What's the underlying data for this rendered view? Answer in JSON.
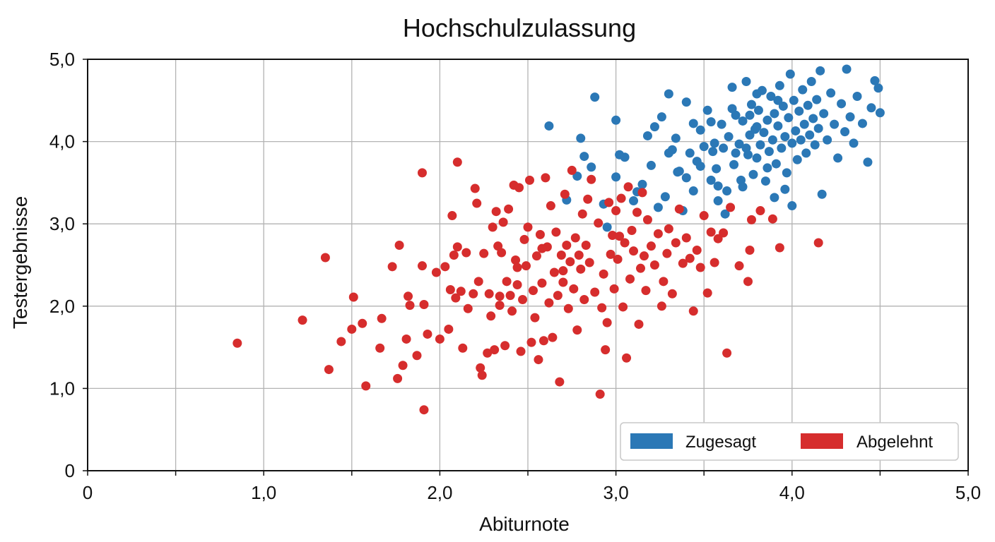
{
  "chart_data": {
    "type": "scatter",
    "title": "Hochschulzulassung",
    "xlabel": "Abiturnote",
    "ylabel": "Testergebnisse",
    "xlim": [
      0,
      5
    ],
    "ylim": [
      0,
      5
    ],
    "x_ticks": [
      0,
      0.5,
      1,
      1.5,
      2,
      2.5,
      3,
      3.5,
      4,
      4.5,
      5
    ],
    "x_tick_labels": [
      "0",
      "",
      "1,0",
      "",
      "2,0",
      "",
      "3,0",
      "",
      "4,0",
      "",
      "5,0"
    ],
    "y_ticks": [
      0,
      1,
      2,
      3,
      4,
      5
    ],
    "y_tick_labels": [
      "0",
      "1,0",
      "2,0",
      "3,0",
      "4,0",
      "5,0"
    ],
    "grid": true,
    "legend_position": "bottom-right",
    "series": [
      {
        "name": "Zugesagt",
        "color": "#2b78b6",
        "points": [
          [
            2.62,
            4.19
          ],
          [
            2.72,
            3.29
          ],
          [
            2.78,
            3.58
          ],
          [
            2.8,
            4.04
          ],
          [
            2.82,
            3.82
          ],
          [
            2.86,
            3.69
          ],
          [
            2.88,
            4.54
          ],
          [
            2.93,
            3.24
          ],
          [
            2.95,
            2.96
          ],
          [
            3.0,
            3.57
          ],
          [
            3.0,
            4.26
          ],
          [
            3.02,
            3.84
          ],
          [
            3.05,
            3.81
          ],
          [
            3.1,
            3.28
          ],
          [
            3.12,
            3.39
          ],
          [
            3.15,
            3.48
          ],
          [
            3.18,
            4.07
          ],
          [
            3.2,
            3.71
          ],
          [
            3.22,
            4.18
          ],
          [
            3.24,
            3.2
          ],
          [
            3.28,
            3.33
          ],
          [
            3.3,
            4.58
          ],
          [
            3.32,
            3.9
          ],
          [
            3.34,
            4.04
          ],
          [
            3.35,
            3.63
          ],
          [
            3.38,
            3.16
          ],
          [
            3.4,
            4.48
          ],
          [
            3.42,
            3.86
          ],
          [
            3.44,
            3.4
          ],
          [
            3.46,
            3.76
          ],
          [
            3.48,
            4.14
          ],
          [
            3.5,
            3.94
          ],
          [
            3.52,
            4.38
          ],
          [
            3.54,
            3.53
          ],
          [
            3.55,
            3.88
          ],
          [
            3.57,
            3.67
          ],
          [
            3.58,
            3.28
          ],
          [
            3.6,
            4.21
          ],
          [
            3.61,
            3.92
          ],
          [
            3.63,
            3.4
          ],
          [
            3.64,
            4.06
          ],
          [
            3.66,
            4.66
          ],
          [
            3.67,
            3.72
          ],
          [
            3.68,
            4.32
          ],
          [
            3.7,
            3.97
          ],
          [
            3.71,
            3.53
          ],
          [
            3.72,
            4.25
          ],
          [
            3.74,
            4.73
          ],
          [
            3.75,
            3.84
          ],
          [
            3.76,
            4.08
          ],
          [
            3.77,
            4.45
          ],
          [
            3.78,
            3.6
          ],
          [
            3.79,
            4.15
          ],
          [
            3.8,
            3.8
          ],
          [
            3.81,
            4.38
          ],
          [
            3.82,
            3.96
          ],
          [
            3.83,
            4.62
          ],
          [
            3.84,
            4.11
          ],
          [
            3.85,
            3.52
          ],
          [
            3.86,
            4.26
          ],
          [
            3.87,
            3.88
          ],
          [
            3.88,
            4.55
          ],
          [
            3.89,
            4.02
          ],
          [
            3.9,
            4.34
          ],
          [
            3.91,
            3.73
          ],
          [
            3.92,
            4.19
          ],
          [
            3.93,
            4.68
          ],
          [
            3.94,
            3.92
          ],
          [
            3.95,
            4.43
          ],
          [
            3.96,
            4.06
          ],
          [
            3.97,
            3.62
          ],
          [
            3.98,
            4.29
          ],
          [
            3.99,
            4.82
          ],
          [
            4.0,
            3.98
          ],
          [
            4.01,
            4.5
          ],
          [
            4.02,
            4.13
          ],
          [
            4.03,
            3.78
          ],
          [
            4.04,
            4.37
          ],
          [
            4.05,
            4.02
          ],
          [
            4.06,
            4.63
          ],
          [
            4.07,
            4.21
          ],
          [
            4.08,
            3.86
          ],
          [
            4.09,
            4.44
          ],
          [
            4.1,
            4.08
          ],
          [
            4.11,
            4.73
          ],
          [
            4.12,
            4.28
          ],
          [
            4.13,
            3.96
          ],
          [
            4.14,
            4.51
          ],
          [
            4.15,
            4.16
          ],
          [
            4.16,
            4.86
          ],
          [
            4.17,
            3.36
          ],
          [
            4.18,
            4.34
          ],
          [
            4.2,
            4.02
          ],
          [
            4.22,
            4.59
          ],
          [
            4.24,
            4.21
          ],
          [
            4.26,
            3.8
          ],
          [
            4.28,
            4.46
          ],
          [
            4.3,
            4.12
          ],
          [
            4.31,
            4.88
          ],
          [
            4.33,
            4.3
          ],
          [
            4.35,
            3.98
          ],
          [
            4.37,
            4.55
          ],
          [
            4.4,
            4.22
          ],
          [
            4.43,
            3.75
          ],
          [
            4.45,
            4.41
          ],
          [
            4.47,
            4.74
          ],
          [
            4.49,
            4.65
          ],
          [
            4.5,
            4.35
          ],
          [
            3.36,
            3.64
          ],
          [
            3.44,
            4.22
          ],
          [
            3.56,
            3.98
          ],
          [
            3.62,
            3.12
          ],
          [
            3.68,
            3.86
          ],
          [
            3.72,
            3.45
          ],
          [
            3.76,
            4.32
          ],
          [
            3.8,
            4.58
          ],
          [
            3.86,
            3.68
          ],
          [
            3.9,
            3.32
          ],
          [
            3.96,
            3.42
          ],
          [
            4.0,
            3.22
          ],
          [
            3.3,
            3.86
          ],
          [
            3.26,
            4.3
          ],
          [
            3.4,
            3.56
          ],
          [
            3.48,
            3.7
          ],
          [
            3.54,
            4.24
          ],
          [
            3.58,
            3.46
          ],
          [
            3.66,
            4.4
          ],
          [
            3.74,
            3.92
          ],
          [
            3.8,
            4.18
          ],
          [
            3.92,
            4.5
          ]
        ]
      },
      {
        "name": "Abgelehnt",
        "color": "#d62d2d",
        "points": [
          [
            0.85,
            1.55
          ],
          [
            1.22,
            1.83
          ],
          [
            1.35,
            2.59
          ],
          [
            1.37,
            1.23
          ],
          [
            1.44,
            1.57
          ],
          [
            1.5,
            1.72
          ],
          [
            1.51,
            2.11
          ],
          [
            1.56,
            1.79
          ],
          [
            1.58,
            1.03
          ],
          [
            1.66,
            1.49
          ],
          [
            1.67,
            1.85
          ],
          [
            1.73,
            2.48
          ],
          [
            1.76,
            1.12
          ],
          [
            1.77,
            2.74
          ],
          [
            1.79,
            1.28
          ],
          [
            1.81,
            1.6
          ],
          [
            1.82,
            2.12
          ],
          [
            1.83,
            2.01
          ],
          [
            1.87,
            1.4
          ],
          [
            1.9,
            3.62
          ],
          [
            1.9,
            2.49
          ],
          [
            1.91,
            2.02
          ],
          [
            1.91,
            0.74
          ],
          [
            1.93,
            1.66
          ],
          [
            1.98,
            2.41
          ],
          [
            2.0,
            1.6
          ],
          [
            2.03,
            2.48
          ],
          [
            2.05,
            1.72
          ],
          [
            2.06,
            2.2
          ],
          [
            2.07,
            3.1
          ],
          [
            2.08,
            2.62
          ],
          [
            2.09,
            2.1
          ],
          [
            2.1,
            2.72
          ],
          [
            2.1,
            3.75
          ],
          [
            2.12,
            2.18
          ],
          [
            2.13,
            1.49
          ],
          [
            2.15,
            2.65
          ],
          [
            2.16,
            1.97
          ],
          [
            2.19,
            2.15
          ],
          [
            2.2,
            3.43
          ],
          [
            2.21,
            3.25
          ],
          [
            2.22,
            2.3
          ],
          [
            2.23,
            1.25
          ],
          [
            2.24,
            1.16
          ],
          [
            2.25,
            2.64
          ],
          [
            2.27,
            1.43
          ],
          [
            2.28,
            2.15
          ],
          [
            2.29,
            1.88
          ],
          [
            2.3,
            2.96
          ],
          [
            2.31,
            1.47
          ],
          [
            2.32,
            3.15
          ],
          [
            2.33,
            2.73
          ],
          [
            2.34,
            2.01
          ],
          [
            2.35,
            2.65
          ],
          [
            2.36,
            3.02
          ],
          [
            2.37,
            1.52
          ],
          [
            2.38,
            2.3
          ],
          [
            2.39,
            3.18
          ],
          [
            2.4,
            2.13
          ],
          [
            2.41,
            1.94
          ],
          [
            2.42,
            3.47
          ],
          [
            2.43,
            2.56
          ],
          [
            2.44,
            2.26
          ],
          [
            2.45,
            3.44
          ],
          [
            2.46,
            1.45
          ],
          [
            2.47,
            2.08
          ],
          [
            2.48,
            2.81
          ],
          [
            2.49,
            2.49
          ],
          [
            2.5,
            2.96
          ],
          [
            2.51,
            3.53
          ],
          [
            2.52,
            1.56
          ],
          [
            2.53,
            2.19
          ],
          [
            2.54,
            1.86
          ],
          [
            2.55,
            2.61
          ],
          [
            2.56,
            1.35
          ],
          [
            2.57,
            2.87
          ],
          [
            2.58,
            2.28
          ],
          [
            2.59,
            1.58
          ],
          [
            2.6,
            3.56
          ],
          [
            2.61,
            2.72
          ],
          [
            2.62,
            2.04
          ],
          [
            2.63,
            3.22
          ],
          [
            2.64,
            1.62
          ],
          [
            2.65,
            2.41
          ],
          [
            2.66,
            2.9
          ],
          [
            2.67,
            2.13
          ],
          [
            2.68,
            1.08
          ],
          [
            2.69,
            2.62
          ],
          [
            2.7,
            2.29
          ],
          [
            2.71,
            3.36
          ],
          [
            2.72,
            2.74
          ],
          [
            2.73,
            1.97
          ],
          [
            2.74,
            2.54
          ],
          [
            2.75,
            3.65
          ],
          [
            2.76,
            2.21
          ],
          [
            2.77,
            2.83
          ],
          [
            2.78,
            1.71
          ],
          [
            2.79,
            2.62
          ],
          [
            2.8,
            2.45
          ],
          [
            2.81,
            3.12
          ],
          [
            2.82,
            2.08
          ],
          [
            2.83,
            2.74
          ],
          [
            2.84,
            3.3
          ],
          [
            2.85,
            2.53
          ],
          [
            2.86,
            3.54
          ],
          [
            2.88,
            2.17
          ],
          [
            2.9,
            3.01
          ],
          [
            2.91,
            0.93
          ],
          [
            2.92,
            1.98
          ],
          [
            2.93,
            2.39
          ],
          [
            2.94,
            1.47
          ],
          [
            2.95,
            1.8
          ],
          [
            2.96,
            3.26
          ],
          [
            2.97,
            2.63
          ],
          [
            2.98,
            2.86
          ],
          [
            2.99,
            2.21
          ],
          [
            3.0,
            3.16
          ],
          [
            3.01,
            2.57
          ],
          [
            3.02,
            2.85
          ],
          [
            3.03,
            3.31
          ],
          [
            3.04,
            1.99
          ],
          [
            3.05,
            2.77
          ],
          [
            3.06,
            1.37
          ],
          [
            3.07,
            3.45
          ],
          [
            3.08,
            2.33
          ],
          [
            3.09,
            2.92
          ],
          [
            3.1,
            2.67
          ],
          [
            3.12,
            3.14
          ],
          [
            3.13,
            1.78
          ],
          [
            3.14,
            2.46
          ],
          [
            3.15,
            3.38
          ],
          [
            3.16,
            2.61
          ],
          [
            3.17,
            2.19
          ],
          [
            3.18,
            3.05
          ],
          [
            3.2,
            2.73
          ],
          [
            3.22,
            2.5
          ],
          [
            3.24,
            2.88
          ],
          [
            3.26,
            2.0
          ],
          [
            3.27,
            2.3
          ],
          [
            3.29,
            2.64
          ],
          [
            3.3,
            2.94
          ],
          [
            3.32,
            2.15
          ],
          [
            3.34,
            2.77
          ],
          [
            3.36,
            3.18
          ],
          [
            3.38,
            2.52
          ],
          [
            3.4,
            2.83
          ],
          [
            3.42,
            2.58
          ],
          [
            3.44,
            1.94
          ],
          [
            3.46,
            2.68
          ],
          [
            3.48,
            2.47
          ],
          [
            3.5,
            3.1
          ],
          [
            3.52,
            2.16
          ],
          [
            3.54,
            2.9
          ],
          [
            3.56,
            2.53
          ],
          [
            3.58,
            2.82
          ],
          [
            3.61,
            2.89
          ],
          [
            3.63,
            1.43
          ],
          [
            3.65,
            3.2
          ],
          [
            3.7,
            2.49
          ],
          [
            3.75,
            2.3
          ],
          [
            3.76,
            2.68
          ],
          [
            3.77,
            3.05
          ],
          [
            3.82,
            3.16
          ],
          [
            3.89,
            3.06
          ],
          [
            3.93,
            2.71
          ],
          [
            4.15,
            2.77
          ],
          [
            2.34,
            2.12
          ],
          [
            2.44,
            2.47
          ],
          [
            2.58,
            2.7
          ],
          [
            2.7,
            2.43
          ]
        ]
      }
    ]
  }
}
